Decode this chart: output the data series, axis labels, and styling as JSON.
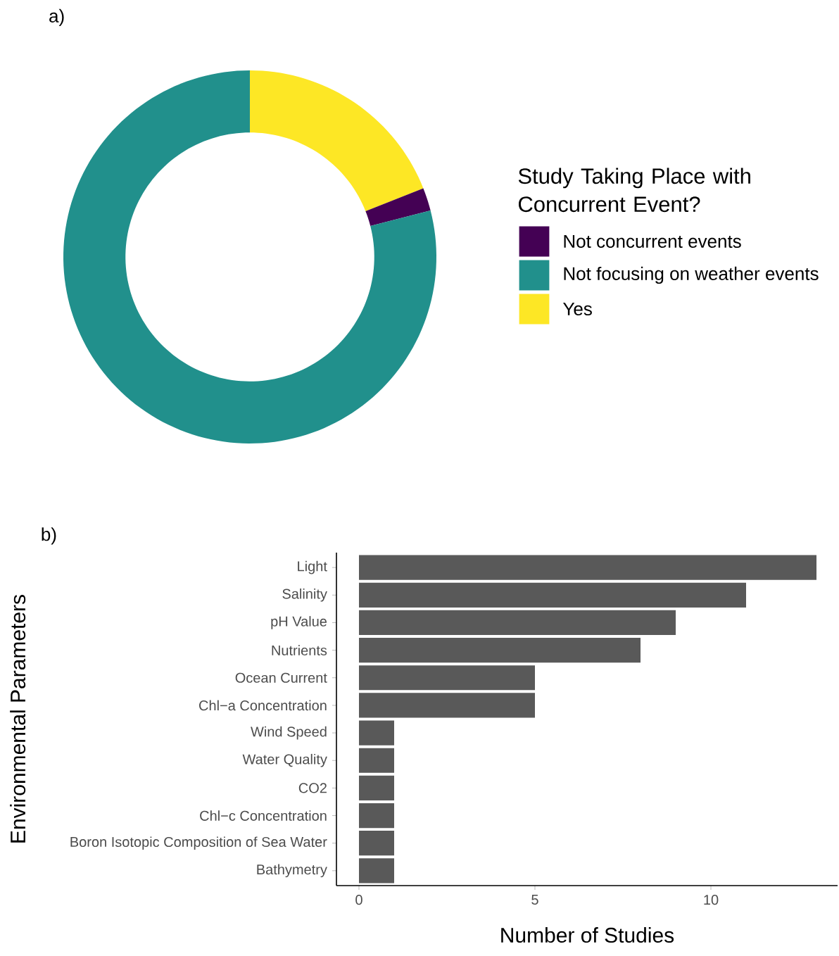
{
  "chart_data": [
    {
      "type": "donut",
      "title": "a)",
      "legend_title": "Study Taking Place with Concurrent Event?",
      "legend": "right",
      "categories": [
        "Not concurrent events",
        "Not focusing on weather events",
        "Yes"
      ],
      "values": [
        2,
        79,
        19
      ],
      "colors": [
        "#440154",
        "#21908c",
        "#fde725"
      ]
    },
    {
      "type": "bar",
      "orientation": "horizontal",
      "title": "b)",
      "xlabel": "Number of Studies",
      "ylabel": "Environmental Parameters",
      "categories": [
        "Light",
        "Salinity",
        "pH Value",
        "Nutrients",
        "Ocean Current",
        "Chl−a Concentration",
        "Wind Speed",
        "Water Quality",
        "CO2",
        "Chl−c Concentration",
        "Boron Isotopic Composition of Sea Water",
        "Bathymetry"
      ],
      "values": [
        13,
        11,
        9,
        8,
        5,
        5,
        1,
        1,
        1,
        1,
        1,
        1
      ],
      "color": "#595959",
      "xlim": [
        -0.64,
        13.6
      ],
      "xticks": [
        0,
        5,
        10
      ]
    }
  ]
}
